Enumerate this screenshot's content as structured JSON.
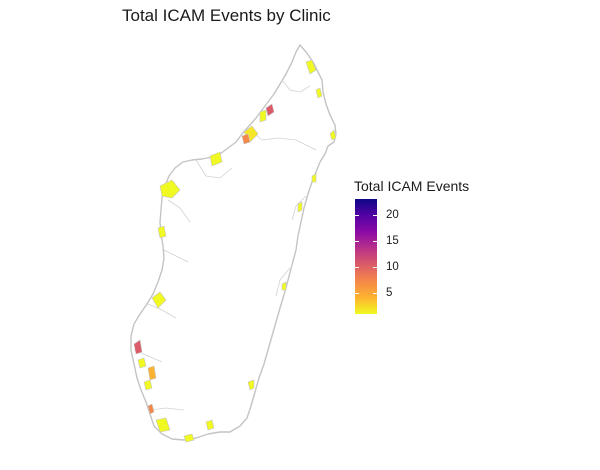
{
  "title": "Total ICAM Events by Clinic",
  "legend": {
    "title": "Total ICAM Events",
    "range": [
      1,
      23
    ],
    "ticks": [
      {
        "value": 20,
        "label": "20"
      },
      {
        "value": 15,
        "label": "15"
      },
      {
        "value": 10,
        "label": "10"
      },
      {
        "value": 5,
        "label": "5"
      }
    ],
    "gradient_colors": [
      "#f0f921",
      "#fdb32f",
      "#f48849",
      "#db5c68",
      "#b83289",
      "#8b0aa5",
      "#5302a3",
      "#0d0887"
    ]
  },
  "colors": {
    "boundary": "#c4c4c4",
    "low": "#f0f921",
    "high": "#0d0887"
  }
}
